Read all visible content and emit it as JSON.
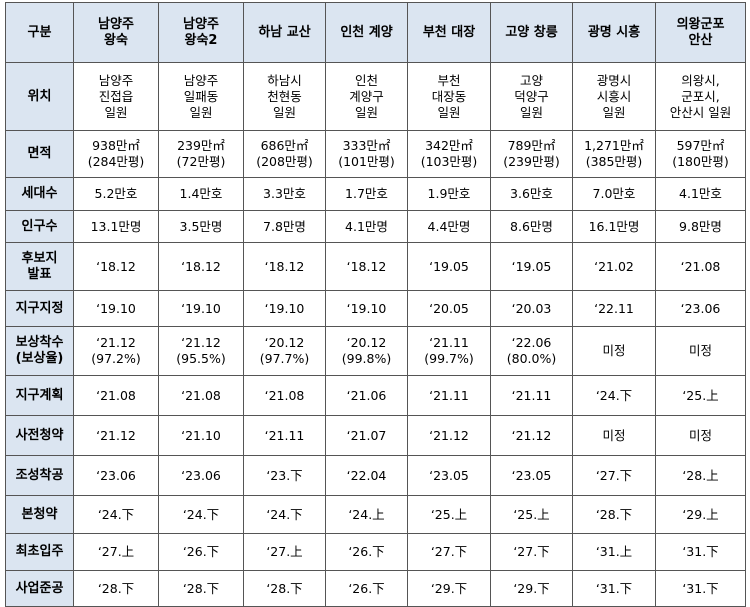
{
  "table": {
    "header": [
      [
        "구분"
      ],
      [
        "남양주",
        "왕숙"
      ],
      [
        "남양주",
        "왕숙2"
      ],
      [
        "하남 교산"
      ],
      [
        "인천 계양"
      ],
      [
        "부천 대장"
      ],
      [
        "고양 창릉"
      ],
      [
        "광명 시흥"
      ],
      [
        "의왕군포",
        "안산"
      ]
    ],
    "rows": [
      {
        "label": [
          "위치"
        ],
        "cells": [
          [
            "남양주",
            "진접읍",
            "일원"
          ],
          [
            "남양주",
            "일패동",
            "일원"
          ],
          [
            "하남시",
            "천현동",
            "일원"
          ],
          [
            "인천",
            "계양구",
            "일원"
          ],
          [
            "부천",
            "대장동",
            "일원"
          ],
          [
            "고양",
            "덕양구",
            "일원"
          ],
          [
            "광명시",
            "시흥시",
            "일원"
          ],
          [
            "의왕시,",
            "군포시,",
            "안산시 일원"
          ]
        ]
      },
      {
        "label": [
          "면적"
        ],
        "cells": [
          [
            "938만㎡",
            "(284만평)"
          ],
          [
            "239만㎡",
            "(72만평)"
          ],
          [
            "686만㎡",
            "(208만평)"
          ],
          [
            "333만㎡",
            "(101만평)"
          ],
          [
            "342만㎡",
            "(103만평)"
          ],
          [
            "789만㎡",
            "(239만평)"
          ],
          [
            "1,271만㎡",
            "(385만평)"
          ],
          [
            "597만㎡",
            "(180만평)"
          ]
        ]
      },
      {
        "label": [
          "세대수"
        ],
        "cells": [
          [
            "5.2만호"
          ],
          [
            "1.4만호"
          ],
          [
            "3.3만호"
          ],
          [
            "1.7만호"
          ],
          [
            "1.9만호"
          ],
          [
            "3.6만호"
          ],
          [
            "7.0만호"
          ],
          [
            "4.1만호"
          ]
        ]
      },
      {
        "label": [
          "인구수"
        ],
        "cells": [
          [
            "13.1만명"
          ],
          [
            "3.5만명"
          ],
          [
            "7.8만명"
          ],
          [
            "4.1만명"
          ],
          [
            "4.4만명"
          ],
          [
            "8.6만명"
          ],
          [
            "16.1만명"
          ],
          [
            "9.8만명"
          ]
        ]
      },
      {
        "label": [
          "후보지",
          "발표"
        ],
        "cells": [
          [
            "‘18.12"
          ],
          [
            "‘18.12"
          ],
          [
            "‘18.12"
          ],
          [
            "‘18.12"
          ],
          [
            "‘19.05"
          ],
          [
            "‘19.05"
          ],
          [
            "‘21.02"
          ],
          [
            "‘21.08"
          ]
        ]
      },
      {
        "label": [
          "지구지정"
        ],
        "cells": [
          [
            "‘19.10"
          ],
          [
            "‘19.10"
          ],
          [
            "‘19.10"
          ],
          [
            "‘19.10"
          ],
          [
            "‘20.05"
          ],
          [
            "‘20.03"
          ],
          [
            "‘22.11"
          ],
          [
            "‘23.06"
          ]
        ]
      },
      {
        "label": [
          "보상착수",
          "(보상율)"
        ],
        "cells": [
          [
            "‘21.12",
            "(97.2%)"
          ],
          [
            "‘21.12",
            "(95.5%)"
          ],
          [
            "‘20.12",
            "(97.7%)"
          ],
          [
            "‘20.12",
            "(99.8%)"
          ],
          [
            "‘21.11",
            "(99.7%)"
          ],
          [
            "‘22.06",
            "(80.0%)"
          ],
          [
            "미정"
          ],
          [
            "미정"
          ]
        ]
      },
      {
        "label": [
          "지구계획"
        ],
        "cells": [
          [
            "‘21.08"
          ],
          [
            "‘21.08"
          ],
          [
            "‘21.08"
          ],
          [
            "‘21.06"
          ],
          [
            "‘21.11"
          ],
          [
            "‘21.11"
          ],
          [
            "‘24.下"
          ],
          [
            "‘25.上"
          ]
        ]
      },
      {
        "label": [
          "사전청약"
        ],
        "cells": [
          [
            "‘21.12"
          ],
          [
            "‘21.10"
          ],
          [
            "‘21.11"
          ],
          [
            "‘21.07"
          ],
          [
            "‘21.12"
          ],
          [
            "‘21.12"
          ],
          [
            "미정"
          ],
          [
            "미정"
          ]
        ]
      },
      {
        "label": [
          "조성착공"
        ],
        "cells": [
          [
            "‘23.06"
          ],
          [
            "‘23.06"
          ],
          [
            "‘23.下"
          ],
          [
            "‘22.04"
          ],
          [
            "‘23.05"
          ],
          [
            "‘23.05"
          ],
          [
            "‘27.下"
          ],
          [
            "‘28.上"
          ]
        ]
      },
      {
        "label": [
          "본청약"
        ],
        "cells": [
          [
            "‘24.下"
          ],
          [
            "‘24.下"
          ],
          [
            "‘24.下"
          ],
          [
            "‘24.上"
          ],
          [
            "‘25.上"
          ],
          [
            "‘25.上"
          ],
          [
            "‘28.下"
          ],
          [
            "‘29.上"
          ]
        ]
      },
      {
        "label": [
          "최초입주"
        ],
        "cells": [
          [
            "‘27.上"
          ],
          [
            "‘26.下"
          ],
          [
            "‘27.上"
          ],
          [
            "‘26.下"
          ],
          [
            "‘27.下"
          ],
          [
            "‘27.下"
          ],
          [
            "‘31.上"
          ],
          [
            "‘31.下"
          ]
        ]
      },
      {
        "label": [
          "사업준공"
        ],
        "cells": [
          [
            "‘28.下"
          ],
          [
            "‘28.下"
          ],
          [
            "‘28.下"
          ],
          [
            "‘26.下"
          ],
          [
            "‘29.下"
          ],
          [
            "‘29.下"
          ],
          [
            "‘31.下"
          ],
          [
            "‘31.下"
          ]
        ]
      }
    ]
  }
}
